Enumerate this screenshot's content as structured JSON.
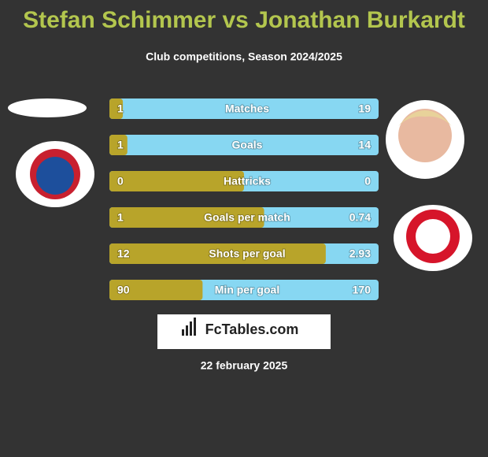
{
  "header": {
    "title": "Stefan Schimmer vs Jonathan Burkardt",
    "subtitle": "Club competitions, Season 2024/2025"
  },
  "rows": [
    {
      "label": "Matches",
      "left": 1,
      "right": 19
    },
    {
      "label": "Goals",
      "left": 1,
      "right": 14
    },
    {
      "label": "Hattricks",
      "left": 0,
      "right": 0
    },
    {
      "label": "Goals per match",
      "left": 1,
      "right": 0.74
    },
    {
      "label": "Shots per goal",
      "left": 12,
      "right": 2.93
    },
    {
      "label": "Min per goal",
      "left": 90,
      "right": 170
    }
  ],
  "brand": "FcTables.com",
  "date": "22 february 2025"
}
